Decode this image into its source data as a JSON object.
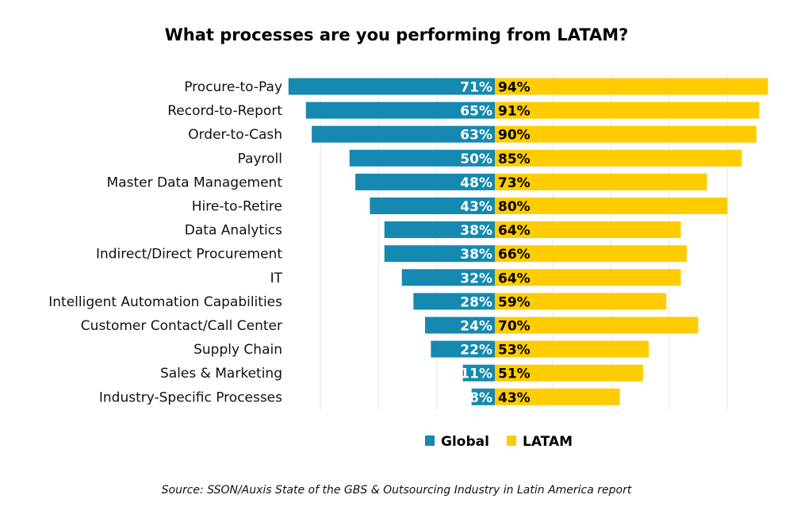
{
  "chart_data": {
    "type": "bar",
    "orientation": "horizontal-diverging",
    "title": "What processes are you performing from LATAM?",
    "categories": [
      "Procure-to-Pay",
      "Record-to-Report",
      "Order-to-Cash",
      "Payroll",
      "Master Data Management",
      "Hire-to-Retire",
      "Data Analytics",
      "Indirect/Direct Procurement",
      "IT",
      "Intelligent Automation Capabilities",
      "Customer Contact/Call Center",
      "Supply Chain",
      "Sales & Marketing",
      "Industry-Specific Processes"
    ],
    "series": [
      {
        "name": "Global",
        "color": "#1589B0",
        "values": [
          71,
          65,
          63,
          50,
          48,
          43,
          38,
          38,
          32,
          28,
          24,
          22,
          11,
          8
        ]
      },
      {
        "name": "LATAM",
        "color": "#FFCC00",
        "values": [
          94,
          91,
          90,
          85,
          73,
          80,
          64,
          66,
          64,
          59,
          70,
          53,
          51,
          43
        ]
      }
    ],
    "value_suffix": "%",
    "legend": "bottom-center",
    "grid": true,
    "xlim": [
      -60,
      80
    ],
    "grid_step": 20,
    "source": "Source: SSON/Auxis State of the GBS & Outsourcing Industry in Latin America report"
  }
}
